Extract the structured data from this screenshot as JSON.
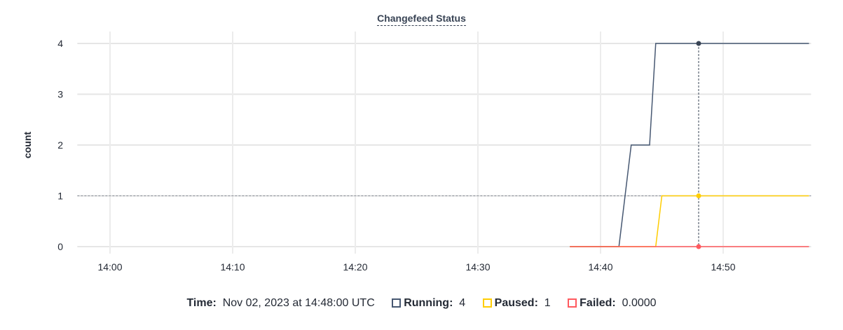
{
  "chart_data": {
    "type": "line",
    "title": "Changefeed Status",
    "ylabel": "count",
    "xlabel": "",
    "x_ticks": [
      "14:00",
      "14:10",
      "14:20",
      "14:30",
      "14:40",
      "14:50"
    ],
    "y_ticks": [
      0,
      1,
      2,
      3,
      4
    ],
    "xlim": [
      "13:57:20",
      "14:57:10"
    ],
    "ylim": [
      0,
      4
    ],
    "grid": true,
    "series": [
      {
        "name": "Running",
        "color": "#475872",
        "points": [
          [
            "14:37:30",
            0
          ],
          [
            "14:41:30",
            0
          ],
          [
            "14:42:30",
            2
          ],
          [
            "14:44:00",
            2
          ],
          [
            "14:44:30",
            4
          ],
          [
            "14:57:00",
            4
          ]
        ]
      },
      {
        "name": "Paused",
        "color": "#ffcd02",
        "points": [
          [
            "14:37:30",
            0
          ],
          [
            "14:44:30",
            0
          ],
          [
            "14:45:00",
            1
          ],
          [
            "14:57:00",
            1
          ]
        ]
      },
      {
        "name": "Failed",
        "color": "#ff5a5f",
        "points": [
          [
            "14:37:30",
            0
          ],
          [
            "14:57:00",
            0
          ]
        ]
      }
    ],
    "hover": {
      "time": "14:48:00",
      "value_line": 1
    }
  },
  "legend": {
    "time_label": "Time:",
    "time_value": "Nov 02, 2023 at 14:48:00 UTC",
    "items": [
      {
        "label": "Running:",
        "value": "4",
        "color": "#475872"
      },
      {
        "label": "Paused:",
        "value": "1",
        "color": "#ffcd02"
      },
      {
        "label": "Failed:",
        "value": "0.0000",
        "color": "#ff5a5f"
      }
    ]
  }
}
